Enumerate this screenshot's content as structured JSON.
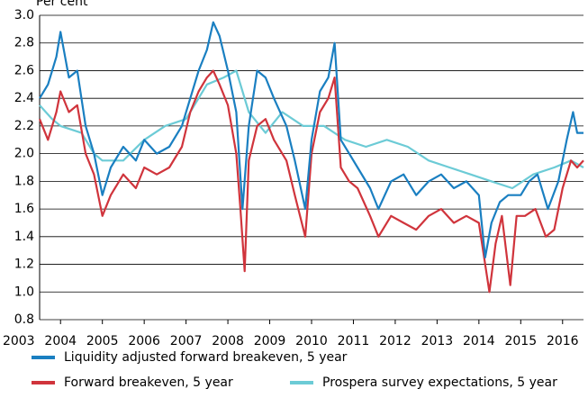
{
  "chart_data": {
    "type": "line",
    "y_label": "Per cent",
    "xlim": [
      2003.5,
      2016.5
    ],
    "xticks": [
      2003,
      2004,
      2005,
      2006,
      2007,
      2008,
      2009,
      2010,
      2011,
      2012,
      2013,
      2014,
      2015,
      2016
    ],
    "ylim": [
      0.8,
      3.0
    ],
    "yticks": [
      0.8,
      {
        "value": 1,
        "label": "1.0"
      },
      1.2,
      1.4,
      1.6,
      1.8,
      {
        "value": 2,
        "label": "2.0"
      },
      2.2,
      2.4,
      2.6,
      2.8,
      {
        "value": 3,
        "label": "3.0"
      }
    ],
    "grid": true,
    "legend": "bottom",
    "series": [
      {
        "name": "Liquidity adjusted forward breakeven, 5 year",
        "color": "#1a7fc1",
        "x": [
          2003.5,
          2003.7,
          2003.9,
          2004.0,
          2004.2,
          2004.4,
          2004.6,
          2004.8,
          2005.0,
          2005.2,
          2005.5,
          2005.8,
          2006.0,
          2006.3,
          2006.6,
          2006.9,
          2007.1,
          2007.3,
          2007.5,
          2007.65,
          2007.8,
          2008.0,
          2008.2,
          2008.35,
          2008.5,
          2008.7,
          2008.9,
          2009.1,
          2009.4,
          2009.6,
          2009.85,
          2010.0,
          2010.2,
          2010.4,
          2010.55,
          2010.7,
          2010.9,
          2011.1,
          2011.4,
          2011.6,
          2011.9,
          2012.2,
          2012.5,
          2012.8,
          2013.1,
          2013.4,
          2013.7,
          2014.0,
          2014.15,
          2014.3,
          2014.5,
          2014.7,
          2015.0,
          2015.2,
          2015.4,
          2015.65,
          2015.9,
          2016.1,
          2016.25,
          2016.35,
          2016.5
        ],
        "values": [
          2.4,
          2.5,
          2.7,
          2.88,
          2.55,
          2.6,
          2.2,
          2.0,
          1.7,
          1.9,
          2.05,
          1.95,
          2.1,
          2.0,
          2.05,
          2.2,
          2.4,
          2.6,
          2.75,
          2.95,
          2.85,
          2.6,
          2.3,
          1.6,
          2.2,
          2.6,
          2.55,
          2.4,
          2.2,
          1.95,
          1.6,
          2.1,
          2.45,
          2.55,
          2.8,
          2.1,
          2.0,
          1.9,
          1.75,
          1.6,
          1.8,
          1.85,
          1.7,
          1.8,
          1.85,
          1.75,
          1.8,
          1.7,
          1.25,
          1.5,
          1.65,
          1.7,
          1.7,
          1.8,
          1.85,
          1.6,
          1.8,
          2.1,
          2.3,
          2.15,
          2.15
        ]
      },
      {
        "name": "Forward breakeven, 5 year",
        "color": "#d0343c",
        "x": [
          2003.5,
          2003.7,
          2003.9,
          2004.0,
          2004.2,
          2004.4,
          2004.6,
          2004.8,
          2005.0,
          2005.2,
          2005.5,
          2005.8,
          2006.0,
          2006.3,
          2006.6,
          2006.9,
          2007.1,
          2007.3,
          2007.5,
          2007.65,
          2007.8,
          2008.0,
          2008.2,
          2008.3,
          2008.4,
          2008.5,
          2008.7,
          2008.9,
          2009.1,
          2009.4,
          2009.6,
          2009.85,
          2010.0,
          2010.2,
          2010.4,
          2010.55,
          2010.7,
          2010.9,
          2011.1,
          2011.4,
          2011.6,
          2011.9,
          2012.2,
          2012.5,
          2012.8,
          2013.1,
          2013.4,
          2013.7,
          2014.0,
          2014.15,
          2014.25,
          2014.4,
          2014.55,
          2014.75,
          2014.9,
          2015.1,
          2015.35,
          2015.6,
          2015.8,
          2016.0,
          2016.2,
          2016.35,
          2016.5
        ],
        "values": [
          2.25,
          2.1,
          2.3,
          2.45,
          2.3,
          2.35,
          2.0,
          1.85,
          1.55,
          1.7,
          1.85,
          1.75,
          1.9,
          1.85,
          1.9,
          2.05,
          2.3,
          2.45,
          2.55,
          2.6,
          2.5,
          2.35,
          2.0,
          1.6,
          1.15,
          1.95,
          2.2,
          2.25,
          2.1,
          1.95,
          1.7,
          1.4,
          2.0,
          2.3,
          2.4,
          2.55,
          1.9,
          1.8,
          1.75,
          1.55,
          1.4,
          1.55,
          1.5,
          1.45,
          1.55,
          1.6,
          1.5,
          1.55,
          1.5,
          1.2,
          1.0,
          1.35,
          1.55,
          1.05,
          1.55,
          1.55,
          1.6,
          1.4,
          1.45,
          1.75,
          1.95,
          1.9,
          1.95
        ]
      },
      {
        "name": "Prospera survey expectations, 5 year",
        "color": "#6ccbd6",
        "x": [
          2003.5,
          2003.8,
          2004.0,
          2004.5,
          2004.8,
          2005.0,
          2005.5,
          2006.0,
          2006.5,
          2007.0,
          2007.5,
          2007.9,
          2008.2,
          2008.5,
          2008.9,
          2009.3,
          2009.8,
          2010.3,
          2010.8,
          2011.3,
          2011.8,
          2012.3,
          2012.8,
          2013.3,
          2013.8,
          2014.3,
          2014.8,
          2015.3,
          2015.8,
          2016.2,
          2016.5
        ],
        "values": [
          2.35,
          2.25,
          2.2,
          2.15,
          2.0,
          1.95,
          1.95,
          2.1,
          2.2,
          2.25,
          2.5,
          2.55,
          2.6,
          2.3,
          2.15,
          2.3,
          2.2,
          2.2,
          2.1,
          2.05,
          2.1,
          2.05,
          1.95,
          1.9,
          1.85,
          1.8,
          1.75,
          1.85,
          1.9,
          1.95,
          1.9
        ]
      }
    ]
  }
}
